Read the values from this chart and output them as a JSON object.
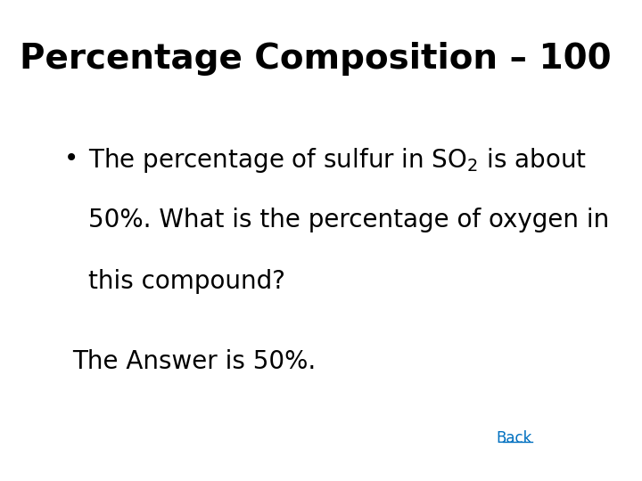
{
  "title_text": "Percentage Composition – 100",
  "bullet_line1": "The percentage of sulfur in SO$_2$ is about",
  "bullet_line2": "50%. What is the percentage of oxygen in",
  "bullet_line3": "this compound?",
  "answer_text": "The Answer is 50%.",
  "back_text": "Back",
  "background_color": "#ffffff",
  "title_color": "#000000",
  "body_color": "#000000",
  "answer_color": "#000000",
  "back_color": "#0070c0",
  "title_fontsize": 28,
  "bullet_fontsize": 20,
  "answer_fontsize": 20,
  "back_fontsize": 12
}
